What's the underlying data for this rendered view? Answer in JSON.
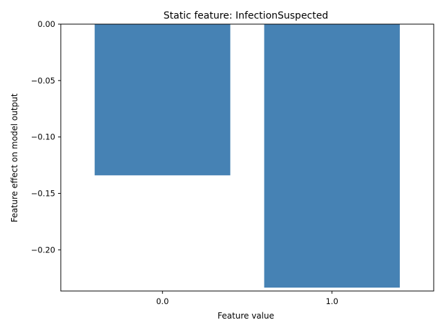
{
  "chart_data": {
    "type": "bar",
    "title": "Static feature: InfectionSuspected",
    "xlabel": "Feature value",
    "ylabel": "Feature effect on model output",
    "categories": [
      "0.0",
      "1.0"
    ],
    "values": [
      -0.134,
      -0.2335
    ],
    "ylim": [
      -0.2365,
      0.0
    ],
    "yticks": [
      0.0,
      -0.05,
      -0.1,
      -0.15,
      -0.2
    ],
    "ytick_labels": [
      "0.00",
      "−0.05",
      "−0.10",
      "−0.15",
      "−0.20"
    ],
    "bar_color": "#4682b4",
    "grid": false,
    "legend": "none"
  }
}
